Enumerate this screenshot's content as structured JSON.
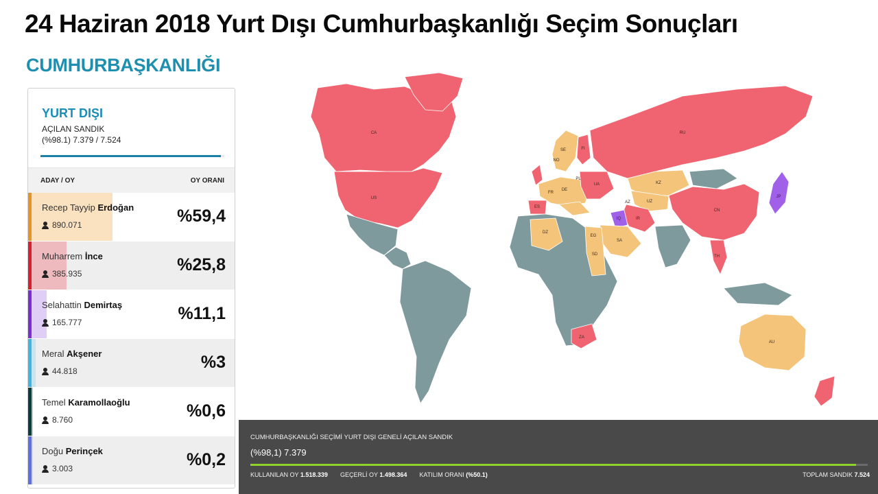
{
  "header": {
    "title": "24 Haziran 2018 Yurt Dışı Cumhurbaşkanlığı Seçim Sonuçları",
    "section": "CUMHURBAŞKANLIĞI"
  },
  "panel": {
    "region": "YURT DIŞI",
    "opened_label": "AÇILAN SANDIK",
    "opened_value": "(%98.1) 7.379 / 7.524",
    "opened_fraction": 0.981,
    "col_candidate": "ADAY / OY",
    "col_rate": "OY ORANI",
    "candidates": [
      {
        "first": "Recep Tayyip",
        "last": "Erdoğan",
        "votes": "890.071",
        "pct": "%59,4",
        "share": 0.594,
        "color": "#e8922a",
        "fill": "#f5c98a"
      },
      {
        "first": "Muharrem",
        "last": "İnce",
        "votes": "385.935",
        "pct": "%25,8",
        "share": 0.258,
        "color": "#d6202e",
        "fill": "#ee8f97"
      },
      {
        "first": "Selahattin",
        "last": "Demirtaş",
        "votes": "165.777",
        "pct": "%11,1",
        "share": 0.111,
        "color": "#7b2fd2",
        "fill": "#c9a6f0"
      },
      {
        "first": "Meral",
        "last": "Akşener",
        "votes": "44.818",
        "pct": "%3",
        "share": 0.03,
        "color": "#40b4de",
        "fill": "#a8dcf0"
      },
      {
        "first": "Temel",
        "last": "Karamollaoğlu",
        "votes": "8.760",
        "pct": "%0,6",
        "share": 0.006,
        "color": "#0d3d3a",
        "fill": "#7fa09d"
      },
      {
        "first": "Doğu",
        "last": "Perinçek",
        "votes": "3.003",
        "pct": "%0,2",
        "share": 0.002,
        "color": "#5e6fe0",
        "fill": "#b5bdf2"
      }
    ]
  },
  "map": {
    "colors": {
      "erdogan": "#f3c47a",
      "ince": "#ef6470",
      "demirtas": "#a061e8",
      "none": "#7f9a9c"
    },
    "labels": [
      "CA",
      "US",
      "RU",
      "CN",
      "AU",
      "ZA",
      "SA",
      "DZ",
      "ES",
      "KZ",
      "SD",
      "JP",
      "IQ",
      "IR",
      "SE",
      "NO",
      "FI",
      "DE",
      "UA",
      "TH",
      "EG",
      "AZ",
      "UZ",
      "PL",
      "FR"
    ]
  },
  "footer": {
    "label": "CUMHURBAŞKANLIĞI SEÇİMİ YURT DIŞI GENELİ AÇILAN SANDIK",
    "value": "(%98,1) 7.379",
    "fraction": 0.981,
    "stats": [
      {
        "label": "KULLANILAN OY",
        "value": "1.518.339"
      },
      {
        "label": "GEÇERLİ OY",
        "value": "1.498.364"
      },
      {
        "label": "KATILIM ORANI",
        "value": "(%50.1)"
      }
    ],
    "total_label": "TOPLAM SANDIK",
    "total_value": "7.524"
  }
}
